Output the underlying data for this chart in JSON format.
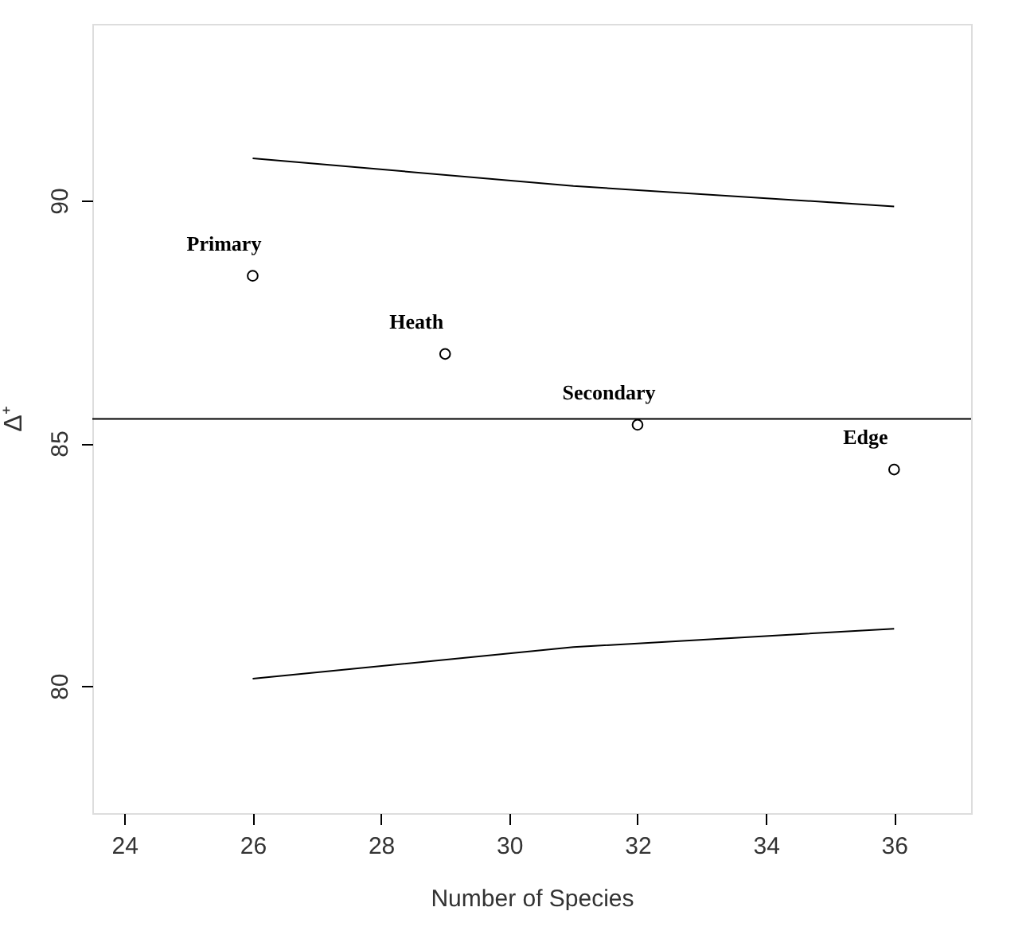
{
  "chart_data": {
    "type": "scatter",
    "xlabel": "Number of Species",
    "ylabel": "Δ⁺",
    "xlim": [
      23.5,
      37.2
    ],
    "ylim": [
      77.38,
      93.64
    ],
    "xticks": [
      24,
      26,
      28,
      30,
      32,
      34,
      36
    ],
    "yticks": [
      80,
      85,
      90
    ],
    "grid": false,
    "series": [
      {
        "color": "#000000",
        "marker": "circle",
        "x": [
          26,
          29,
          32,
          36
        ],
        "values": [
          88.45,
          86.84,
          85.38,
          84.46
        ]
      },
      {
        "type": "line",
        "color": "#000000",
        "marker": "none",
        "line_style": "solid",
        "x": [
          26,
          31,
          36
        ],
        "values": [
          90.87,
          90.3,
          89.88
        ]
      },
      {
        "type": "line",
        "color": "#000000",
        "marker": "none",
        "line_style": "solid",
        "x": [
          26,
          31,
          36
        ],
        "values": [
          80.15,
          80.8,
          81.18
        ]
      }
    ],
    "ref_lines": [
      {
        "axis": "y",
        "value": 85.5,
        "color": "#000000",
        "line_style": "solid"
      }
    ],
    "annotations": [
      {
        "text": "Primary",
        "x": 26,
        "y": 88.45
      },
      {
        "text": "Heath",
        "x": 29,
        "y": 86.84
      },
      {
        "text": "Secondary",
        "x": 32,
        "y": 85.38
      },
      {
        "text": "Edge",
        "x": 36,
        "y": 84.46
      }
    ]
  }
}
